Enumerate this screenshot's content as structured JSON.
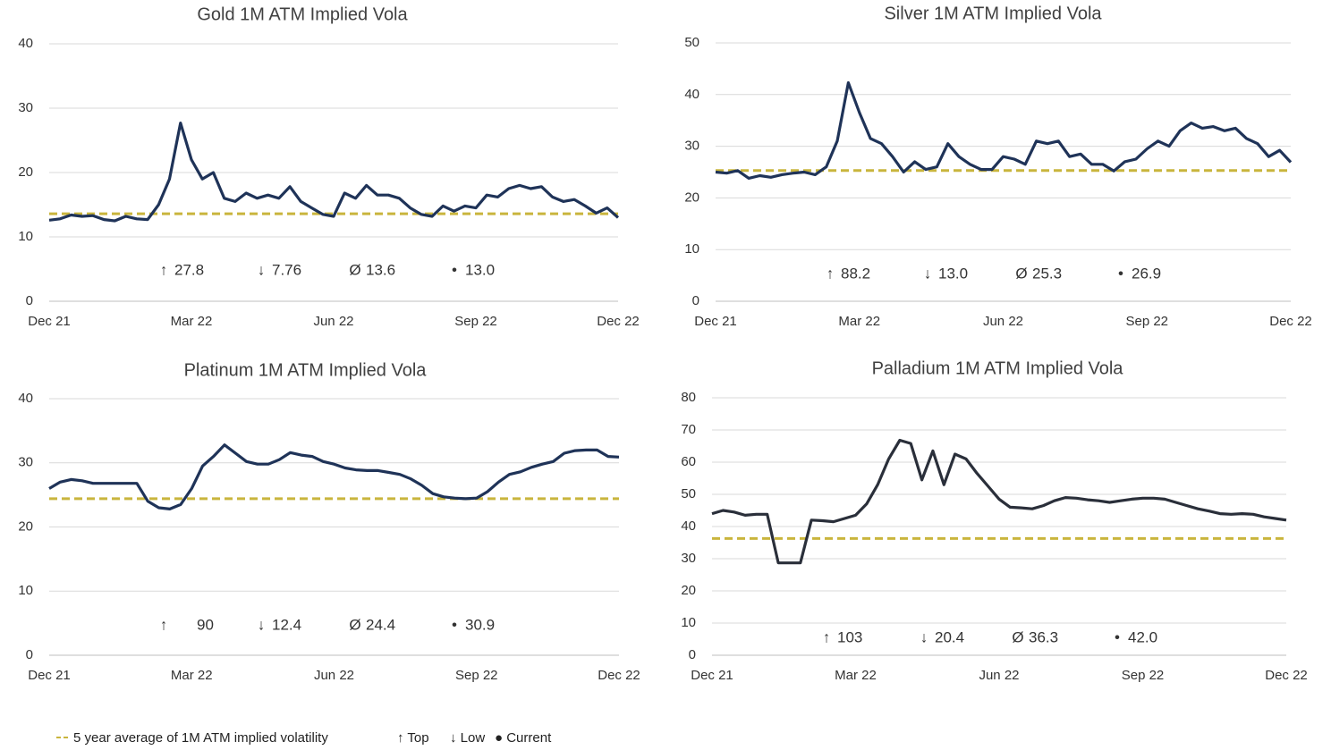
{
  "chart_data": [
    {
      "type": "line",
      "title": "Gold 1M ATM Implied Vola",
      "categories": [
        "Dec 21",
        null,
        null,
        null,
        null,
        null,
        null,
        null,
        null,
        null,
        null,
        null,
        null,
        "Mar 22",
        null,
        null,
        null,
        null,
        null,
        null,
        null,
        null,
        null,
        null,
        null,
        null,
        "Jun 22",
        null,
        null,
        null,
        null,
        null,
        null,
        null,
        null,
        null,
        null,
        null,
        null,
        "Sep 22",
        null,
        null,
        null,
        null,
        null,
        null,
        null,
        null,
        null,
        null,
        null,
        null,
        "Dec 22"
      ],
      "values": [
        12.6,
        12.8,
        13.4,
        13.2,
        13.3,
        12.7,
        12.5,
        13.2,
        12.8,
        12.7,
        15.0,
        19.0,
        27.7,
        22.0,
        19.0,
        20.0,
        16.0,
        15.5,
        16.8,
        16.0,
        16.5,
        16.0,
        17.8,
        15.5,
        14.5,
        13.5,
        13.2,
        16.8,
        16.0,
        18.0,
        16.5,
        16.5,
        16.0,
        14.5,
        13.5,
        13.2,
        14.8,
        14.0,
        14.8,
        14.5,
        16.5,
        16.2,
        17.5,
        18.0,
        17.5,
        17.8,
        16.2,
        15.5,
        15.8,
        14.8,
        13.7,
        14.5,
        13.0
      ],
      "color": "#1f3358",
      "average": 13.6,
      "average_color": "#c9b53d",
      "stats": [
        "27.8",
        "7.76",
        "13.6",
        "13.0"
      ],
      "ylim": [
        0,
        40
      ],
      "yticks": [
        0,
        10,
        20,
        30,
        40
      ],
      "grid": true
    },
    {
      "type": "line",
      "title": "Silver 1M ATM Implied Vola",
      "categories": [
        "Dec 21",
        null,
        null,
        null,
        null,
        null,
        null,
        null,
        null,
        null,
        null,
        null,
        null,
        "Mar 22",
        null,
        null,
        null,
        null,
        null,
        null,
        null,
        null,
        null,
        null,
        null,
        null,
        "Jun 22",
        null,
        null,
        null,
        null,
        null,
        null,
        null,
        null,
        null,
        null,
        null,
        null,
        "Sep 22",
        null,
        null,
        null,
        null,
        null,
        null,
        null,
        null,
        null,
        null,
        null,
        null,
        "Dec 22"
      ],
      "values": [
        25.0,
        24.8,
        25.3,
        23.8,
        24.3,
        24.0,
        24.5,
        24.8,
        25.0,
        24.5,
        26.0,
        31.0,
        42.3,
        36.5,
        31.5,
        30.5,
        28.0,
        25.0,
        27.0,
        25.5,
        26.0,
        30.5,
        28.0,
        26.5,
        25.5,
        25.5,
        28.0,
        27.5,
        26.5,
        31.0,
        30.5,
        31.0,
        28.0,
        28.5,
        26.5,
        26.5,
        25.2,
        27.0,
        27.5,
        29.5,
        31.0,
        30.0,
        33.0,
        34.5,
        33.5,
        33.8,
        33.0,
        33.5,
        31.5,
        30.5,
        28.0,
        29.2,
        26.9
      ],
      "color": "#1f3358",
      "average": 25.3,
      "average_color": "#c9b53d",
      "stats": [
        "88.2",
        "13.0",
        "25.3",
        "26.9"
      ],
      "ylim": [
        0,
        50
      ],
      "yticks": [
        0,
        10,
        20,
        30,
        40,
        50
      ],
      "grid": true
    },
    {
      "type": "line",
      "title": "Platinum 1M ATM Implied Vola",
      "categories": [
        "Dec 21",
        null,
        null,
        null,
        null,
        null,
        null,
        null,
        null,
        null,
        null,
        null,
        null,
        "Mar 22",
        null,
        null,
        null,
        null,
        null,
        null,
        null,
        null,
        null,
        null,
        null,
        null,
        "Jun 22",
        null,
        null,
        null,
        null,
        null,
        null,
        null,
        null,
        null,
        null,
        null,
        null,
        "Sep 22",
        null,
        null,
        null,
        null,
        null,
        null,
        null,
        null,
        null,
        null,
        null,
        null,
        "Dec 22"
      ],
      "values": [
        26.0,
        27.0,
        27.4,
        27.2,
        26.8,
        26.8,
        26.8,
        26.8,
        26.8,
        24.0,
        23.0,
        22.8,
        23.5,
        26.0,
        29.5,
        31.0,
        32.8,
        31.5,
        30.2,
        29.8,
        29.8,
        30.5,
        31.6,
        31.2,
        31.0,
        30.2,
        29.8,
        29.2,
        28.9,
        28.8,
        28.8,
        28.5,
        28.2,
        27.5,
        26.5,
        25.2,
        24.7,
        24.5,
        24.4,
        24.5,
        25.5,
        27.0,
        28.2,
        28.6,
        29.3,
        29.8,
        30.2,
        31.5,
        31.9,
        32.0,
        32.0,
        31.0,
        30.9
      ],
      "color": "#1f3358",
      "average": 24.4,
      "average_color": "#c9b53d",
      "stats": [
        "90",
        "12.4",
        "24.4",
        "30.9"
      ],
      "ylim": [
        0,
        40
      ],
      "yticks": [
        0,
        10,
        20,
        30,
        40
      ],
      "grid": true
    },
    {
      "type": "line",
      "title": "Palladium 1M ATM Implied Vola",
      "categories": [
        "Dec 21",
        null,
        null,
        null,
        null,
        null,
        null,
        null,
        null,
        null,
        null,
        null,
        null,
        "Mar 22",
        null,
        null,
        null,
        null,
        null,
        null,
        null,
        null,
        null,
        null,
        null,
        null,
        "Jun 22",
        null,
        null,
        null,
        null,
        null,
        null,
        null,
        null,
        null,
        null,
        null,
        null,
        "Sep 22",
        null,
        null,
        null,
        null,
        null,
        null,
        null,
        null,
        null,
        null,
        null,
        null,
        "Dec 22"
      ],
      "values": [
        44.0,
        45.0,
        44.5,
        43.5,
        43.8,
        43.8,
        28.7,
        28.7,
        28.7,
        42.0,
        41.8,
        41.5,
        42.5,
        43.5,
        47.0,
        53.0,
        61.0,
        66.8,
        65.8,
        54.5,
        63.5,
        53.0,
        62.5,
        61.0,
        56.5,
        52.5,
        48.5,
        46.0,
        45.8,
        45.5,
        46.5,
        48.0,
        49.0,
        48.8,
        48.3,
        48.0,
        47.5,
        48.0,
        48.5,
        48.8,
        48.8,
        48.5,
        47.5,
        46.5,
        45.5,
        44.8,
        44.0,
        43.8,
        44.0,
        43.8,
        43.0,
        42.5,
        42.0
      ],
      "color": "#2a2f3a",
      "average": 36.3,
      "average_color": "#c9b53d",
      "stats": [
        "103",
        "20.4",
        "36.3",
        "42.0"
      ],
      "ylim": [
        0,
        80
      ],
      "yticks": [
        0,
        10,
        20,
        30,
        40,
        50,
        60,
        70,
        80
      ],
      "grid": true
    }
  ],
  "stat_symbols": [
    "↑",
    "↓",
    "Ø",
    "•"
  ],
  "legend": [
    "5 year average of 1M ATM implied volatility",
    "↑ Top",
    "↓ Low",
    "● Current"
  ]
}
